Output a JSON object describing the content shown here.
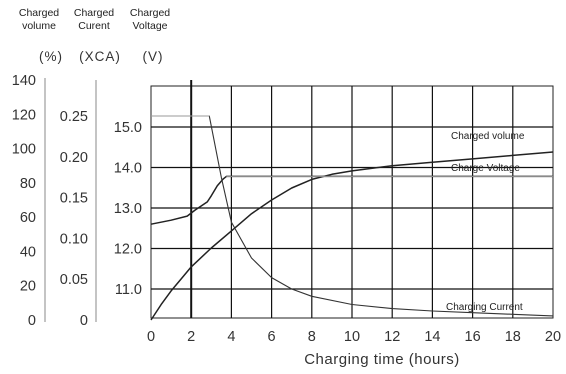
{
  "headers": {
    "volume": [
      "Charged",
      "volume"
    ],
    "current": [
      "Charged",
      "Curent"
    ],
    "voltage": [
      "Charged",
      "Voltage"
    ]
  },
  "units": {
    "volume": "(%)",
    "current": "(XCA)",
    "voltage": "(V)"
  },
  "chart_data": {
    "type": "line",
    "xlabel": "Charging time (hours)",
    "xlim": [
      0,
      20
    ],
    "x_ticks": [
      0,
      2,
      4,
      6,
      8,
      10,
      12,
      14,
      16,
      18,
      20
    ],
    "axes": {
      "volume": {
        "label": "Charged volume",
        "unit": "(%)",
        "ylim": [
          0,
          140
        ],
        "ticks": [
          "0",
          "20",
          "40",
          "60",
          "80",
          "100",
          "120",
          "140"
        ]
      },
      "current": {
        "label": "Charged Curent",
        "unit": "(XCA)",
        "ylim": [
          0,
          0.25
        ],
        "ticks": [
          "0",
          "0.05",
          "0.10",
          "0.15",
          "0.20",
          "0.25"
        ]
      },
      "voltage": {
        "label": "Charged Voltage",
        "unit": "(V)",
        "ylim": [
          10,
          15.5
        ],
        "ticks": [
          "11.0",
          "12.0",
          "13.0",
          "14.0",
          "15.0"
        ]
      }
    },
    "grid": true,
    "series": [
      {
        "name": "Charged volume",
        "axis": "volume",
        "x": [
          0,
          0.5,
          1,
          1.5,
          2,
          3,
          4,
          5,
          6,
          7,
          8,
          9,
          10,
          12,
          14,
          16,
          18,
          20
        ],
        "y": [
          0,
          9,
          17,
          24,
          31,
          42,
          52,
          62,
          70,
          77,
          82,
          85,
          87,
          90,
          92,
          94,
          96,
          98
        ]
      },
      {
        "name": "Charge Voltage",
        "axis": "voltage",
        "x": [
          0,
          1,
          1.8,
          2.2,
          2.8,
          3.0,
          3.3,
          3.6,
          3.75,
          20
        ],
        "y": [
          12.6,
          12.7,
          12.8,
          12.95,
          13.15,
          13.3,
          13.55,
          13.72,
          13.78,
          13.78
        ]
      },
      {
        "name": "Charging Current",
        "axis": "current",
        "x": [
          0,
          2.9,
          3.1,
          3.5,
          4,
          5,
          6,
          7,
          8,
          10,
          12,
          14,
          16,
          18,
          20
        ],
        "y": [
          0.25,
          0.25,
          0.225,
          0.175,
          0.12,
          0.076,
          0.052,
          0.038,
          0.029,
          0.019,
          0.014,
          0.011,
          0.009,
          0.007,
          0.005
        ]
      }
    ],
    "annotations": [
      "Charged volume",
      "Charge Voltage",
      "Charging Current"
    ]
  }
}
